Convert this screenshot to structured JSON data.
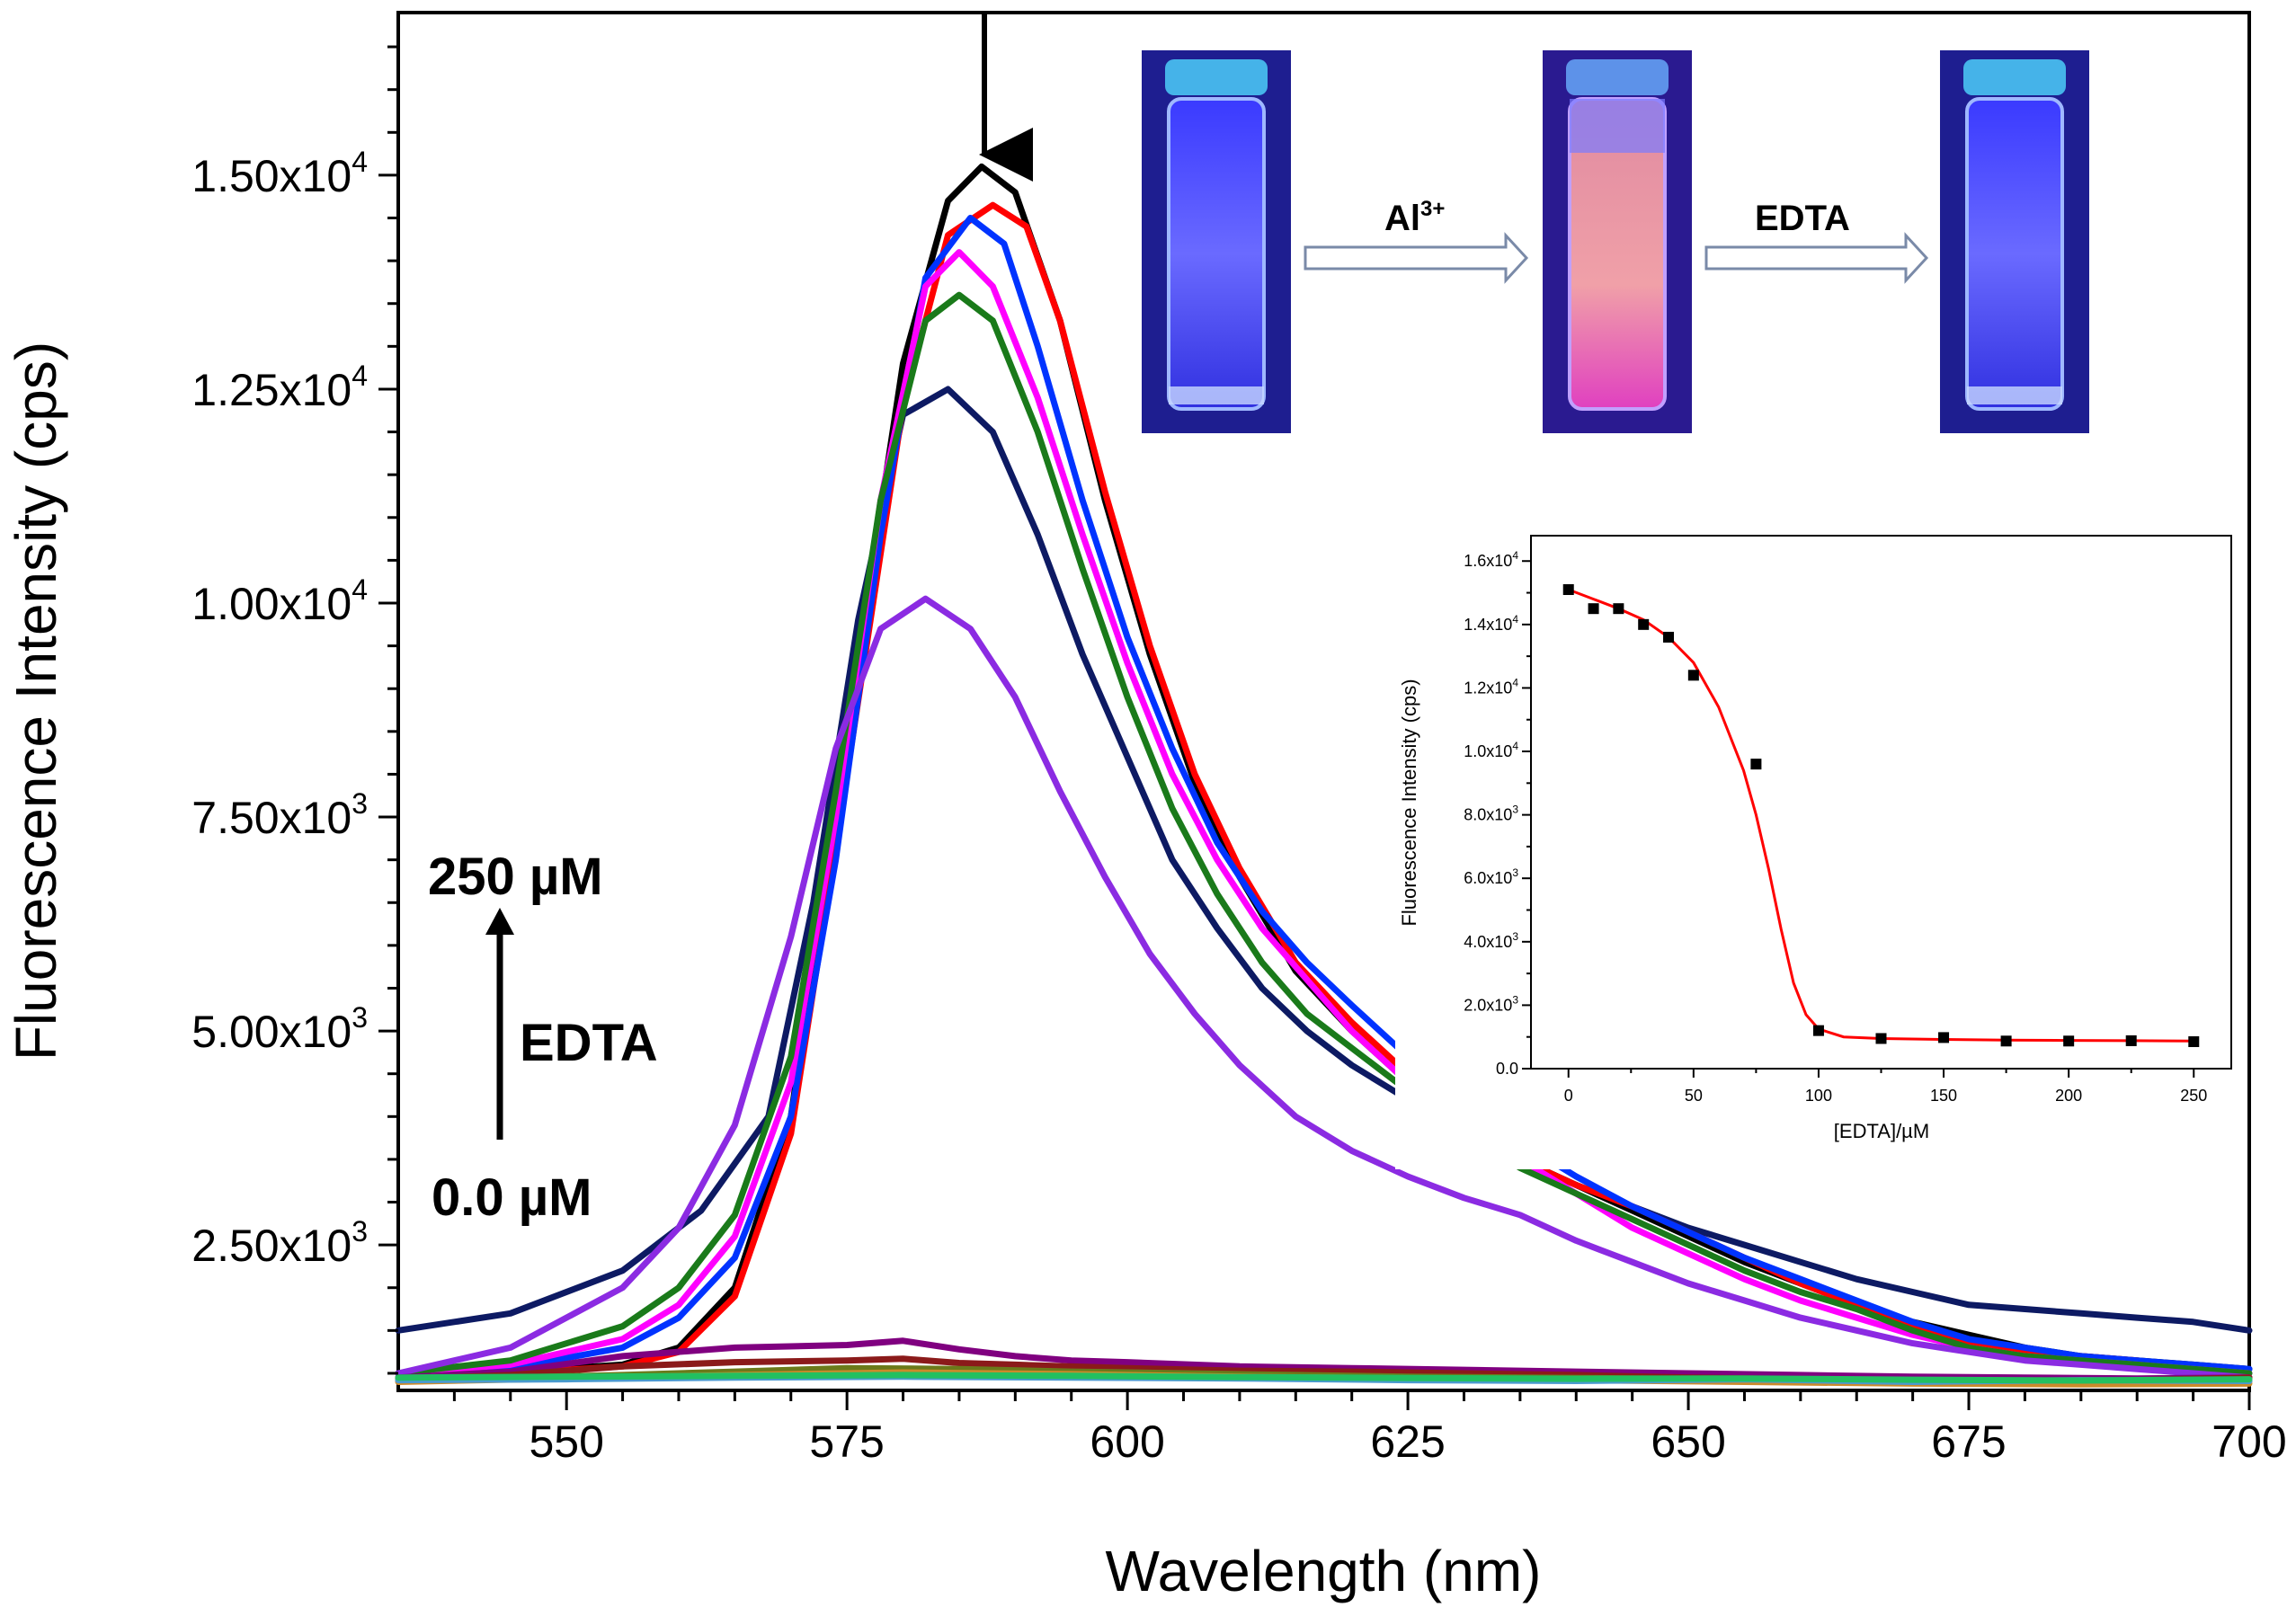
{
  "chart_data": {
    "type": "line",
    "xlabel": "Wavelength (nm)",
    "ylabel": "Fluorescence Intensity (cps)",
    "xlim": [
      535,
      700
    ],
    "ylim": [
      800,
      16900
    ],
    "x_ticks": [
      550,
      575,
      600,
      625,
      650,
      675,
      700
    ],
    "y_ticks": [
      {
        "value": 2500,
        "mantissa": "2.50x10",
        "exp": "3"
      },
      {
        "value": 5000,
        "mantissa": "5.00x10",
        "exp": "3"
      },
      {
        "value": 7500,
        "mantissa": "7.50x10",
        "exp": "3"
      },
      {
        "value": 10000,
        "mantissa": "1.00x10",
        "exp": "4"
      },
      {
        "value": 12500,
        "mantissa": "1.25x10",
        "exp": "4"
      },
      {
        "value": 15000,
        "mantissa": "1.50x10",
        "exp": "4"
      }
    ],
    "grid": false,
    "series": [
      {
        "color": "#0d1a63",
        "x": [
          535,
          545,
          555,
          562,
          568,
          572,
          576,
          580,
          584,
          588,
          592,
          596,
          600,
          604,
          608,
          612,
          616,
          620,
          625,
          630,
          635,
          640,
          645,
          650,
          655,
          660,
          665,
          670,
          675,
          680,
          685,
          690,
          695,
          700
        ],
        "values": [
          1500,
          1700,
          2200,
          2900,
          4000,
          6500,
          9800,
          12200,
          12500,
          12000,
          10800,
          9400,
          8200,
          7000,
          6200,
          5500,
          5000,
          4600,
          4200,
          3800,
          3500,
          3200,
          2950,
          2700,
          2500,
          2300,
          2100,
          1950,
          1800,
          1750,
          1700,
          1650,
          1600,
          1500
        ]
      },
      {
        "color": "#000000",
        "x": [
          535,
          545,
          555,
          560,
          565,
          570,
          575,
          580,
          584,
          587,
          590,
          594,
          598,
          602,
          606,
          610,
          615,
          620,
          625,
          630,
          635,
          640,
          645,
          650,
          655,
          660,
          665,
          670,
          675,
          680,
          685,
          690,
          695,
          700
        ],
        "values": [
          1000,
          1020,
          1100,
          1300,
          2000,
          4000,
          8500,
          12800,
          14700,
          15100,
          14800,
          13300,
          11200,
          9400,
          7900,
          6800,
          5700,
          5000,
          4400,
          3900,
          3500,
          3200,
          2900,
          2600,
          2300,
          2050,
          1800,
          1600,
          1450,
          1300,
          1200,
          1150,
          1100,
          1050
        ]
      },
      {
        "color": "#ff0000",
        "x": [
          535,
          545,
          555,
          560,
          565,
          570,
          575,
          580,
          584,
          588,
          591,
          594,
          598,
          602,
          606,
          610,
          615,
          620,
          625,
          630,
          635,
          640,
          645,
          650,
          655,
          660,
          665,
          670,
          675,
          680,
          685,
          690,
          695,
          700
        ],
        "values": [
          950,
          1000,
          1080,
          1250,
          1900,
          3800,
          8000,
          12300,
          14300,
          14650,
          14400,
          13300,
          11300,
          9500,
          8000,
          6900,
          5800,
          5100,
          4500,
          3900,
          3500,
          3200,
          2950,
          2650,
          2350,
          2050,
          1800,
          1550,
          1350,
          1250,
          1200,
          1150,
          1050,
          950
        ]
      },
      {
        "color": "#0033ff",
        "x": [
          535,
          545,
          555,
          560,
          565,
          570,
          574,
          578,
          582,
          586,
          589,
          592,
          596,
          600,
          604,
          608,
          612,
          616,
          620,
          625,
          630,
          635,
          640,
          645,
          650,
          655,
          660,
          665,
          670,
          675,
          680,
          685,
          690,
          695,
          700
        ],
        "values": [
          1000,
          1060,
          1300,
          1650,
          2350,
          4000,
          7000,
          10800,
          13800,
          14500,
          14200,
          13000,
          11200,
          9600,
          8300,
          7200,
          6400,
          5800,
          5300,
          4700,
          4100,
          3700,
          3300,
          2950,
          2650,
          2350,
          2100,
          1850,
          1600,
          1400,
          1300,
          1200,
          1150,
          1100,
          1050
        ]
      },
      {
        "color": "#ff00ff",
        "x": [
          535,
          545,
          555,
          560,
          565,
          570,
          574,
          578,
          582,
          585,
          588,
          592,
          596,
          600,
          604,
          608,
          612,
          616,
          620,
          625,
          630,
          635,
          640,
          645,
          650,
          655,
          660,
          665,
          670,
          675,
          680,
          685,
          690,
          695,
          700
        ],
        "values": [
          1000,
          1100,
          1400,
          1800,
          2600,
          4400,
          7500,
          11200,
          13700,
          14100,
          13700,
          12400,
          10800,
          9300,
          8000,
          7000,
          6200,
          5600,
          5000,
          4400,
          3900,
          3500,
          3100,
          2700,
          2400,
          2100,
          1850,
          1650,
          1450,
          1300,
          1200,
          1150,
          1100,
          1050,
          1000
        ]
      },
      {
        "color": "#1a7a1a",
        "x": [
          535,
          545,
          555,
          560,
          565,
          570,
          574,
          578,
          582,
          585,
          588,
          592,
          596,
          600,
          604,
          608,
          612,
          616,
          620,
          625,
          630,
          635,
          640,
          645,
          650,
          655,
          660,
          665,
          670,
          675,
          680,
          685,
          690,
          695,
          700
        ],
        "values": [
          1000,
          1150,
          1550,
          2000,
          2850,
          4700,
          7800,
          11200,
          13300,
          13600,
          13300,
          12000,
          10400,
          8900,
          7600,
          6600,
          5800,
          5200,
          4800,
          4300,
          3800,
          3400,
          3100,
          2800,
          2500,
          2200,
          1950,
          1750,
          1500,
          1300,
          1200,
          1150,
          1100,
          1050,
          1000
        ]
      },
      {
        "color": "#8b2be2",
        "x": [
          535,
          545,
          555,
          560,
          565,
          570,
          574,
          578,
          582,
          586,
          590,
          594,
          598,
          602,
          606,
          610,
          615,
          620,
          625,
          630,
          635,
          640,
          645,
          650,
          655,
          660,
          665,
          670,
          675,
          680,
          685,
          690,
          695,
          700
        ],
        "values": [
          1000,
          1300,
          2000,
          2700,
          3900,
          6100,
          8300,
          9700,
          10050,
          9700,
          8900,
          7800,
          6800,
          5900,
          5200,
          4600,
          4000,
          3600,
          3300,
          3050,
          2850,
          2550,
          2300,
          2050,
          1850,
          1650,
          1500,
          1350,
          1250,
          1150,
          1100,
          1050,
          1000,
          950
        ]
      },
      {
        "color": "#800080",
        "x": [
          535,
          545,
          555,
          565,
          575,
          580,
          585,
          590,
          595,
          600,
          610,
          620,
          630,
          640,
          650,
          660,
          670,
          680,
          690,
          700
        ],
        "values": [
          950,
          1020,
          1200,
          1300,
          1330,
          1380,
          1280,
          1200,
          1150,
          1130,
          1080,
          1060,
          1040,
          1020,
          1000,
          980,
          960,
          950,
          940,
          950
        ]
      },
      {
        "color": "#8b1a1a",
        "x": [
          535,
          545,
          555,
          565,
          575,
          580,
          585,
          590,
          600,
          610,
          620,
          630,
          640,
          650,
          660,
          670,
          680,
          690,
          700
        ],
        "values": [
          930,
          980,
          1080,
          1130,
          1150,
          1170,
          1120,
          1100,
          1060,
          1030,
          1020,
          1000,
          980,
          950,
          930,
          920,
          900,
          920,
          950
        ]
      },
      {
        "color": "#6b7a1a",
        "x": [
          535,
          545,
          555,
          565,
          575,
          585,
          595,
          605,
          615,
          625,
          635,
          645,
          655,
          665,
          675,
          685,
          695,
          700
        ],
        "values": [
          920,
          950,
          980,
          1020,
          1060,
          1050,
          1020,
          1000,
          980,
          960,
          950,
          940,
          930,
          920,
          910,
          905,
          900,
          910
        ]
      },
      {
        "color": "#cc8a2a",
        "x": [
          535,
          550,
          565,
          580,
          595,
          610,
          625,
          640,
          655,
          670,
          685,
          700
        ],
        "values": [
          900,
          940,
          980,
          1010,
          990,
          960,
          940,
          920,
          900,
          880,
          870,
          880
        ]
      },
      {
        "color": "#4a9acf",
        "x": [
          535,
          550,
          565,
          580,
          595,
          610,
          625,
          640,
          655,
          670,
          685,
          700
        ],
        "values": [
          920,
          930,
          950,
          960,
          950,
          940,
          920,
          910,
          930,
          900,
          920,
          910
        ]
      },
      {
        "color": "#22c060",
        "x": [
          535,
          550,
          565,
          580,
          595,
          610,
          625,
          640,
          655,
          670,
          685,
          700
        ],
        "values": [
          950,
          960,
          970,
          980,
          970,
          955,
          945,
          935,
          940,
          925,
          915,
          930
        ]
      }
    ],
    "annotations": {
      "top_conc": "250 µM",
      "bottom_conc": "0.0 µM",
      "reagent": "EDTA"
    },
    "inset": {
      "type": "scatter",
      "xlabel": "[EDTA]/µM",
      "ylabel": "Fluorescence Intensity (cps)",
      "xlim": [
        -15,
        265
      ],
      "ylim": [
        0,
        16800
      ],
      "x_ticks": [
        0,
        50,
        100,
        150,
        200,
        250
      ],
      "y_ticks": [
        {
          "value": 0,
          "mantissa": "0.0",
          "exp": ""
        },
        {
          "value": 2000,
          "mantissa": "2.0x10",
          "exp": "3"
        },
        {
          "value": 4000,
          "mantissa": "4.0x10",
          "exp": "3"
        },
        {
          "value": 6000,
          "mantissa": "6.0x10",
          "exp": "3"
        },
        {
          "value": 8000,
          "mantissa": "8.0x10",
          "exp": "3"
        },
        {
          "value": 10000,
          "mantissa": "1.0x10",
          "exp": "4"
        },
        {
          "value": 12000,
          "mantissa": "1.2x10",
          "exp": "4"
        },
        {
          "value": 14000,
          "mantissa": "1.4x10",
          "exp": "4"
        },
        {
          "value": 16000,
          "mantissa": "1.6x10",
          "exp": "4"
        }
      ],
      "points_x": [
        0,
        10,
        20,
        30,
        40,
        50,
        75,
        100,
        125,
        150,
        175,
        200,
        225,
        250
      ],
      "points_y": [
        15100,
        14500,
        14500,
        14000,
        13600,
        12400,
        9600,
        1200,
        950,
        980,
        870,
        870,
        880,
        850
      ],
      "fit_color": "#ff0000",
      "fit_x": [
        0,
        10,
        20,
        30,
        40,
        50,
        60,
        70,
        75,
        80,
        85,
        90,
        95,
        100,
        110,
        125,
        150,
        175,
        200,
        225,
        250
      ],
      "fit_y": [
        15100,
        14800,
        14500,
        14150,
        13600,
        12800,
        11400,
        9400,
        8000,
        6300,
        4400,
        2700,
        1700,
        1250,
        1000,
        950,
        920,
        900,
        890,
        880,
        870
      ]
    },
    "photo_labels": {
      "step1": "Al",
      "step1_sup": "3+",
      "step2": "EDTA"
    }
  }
}
